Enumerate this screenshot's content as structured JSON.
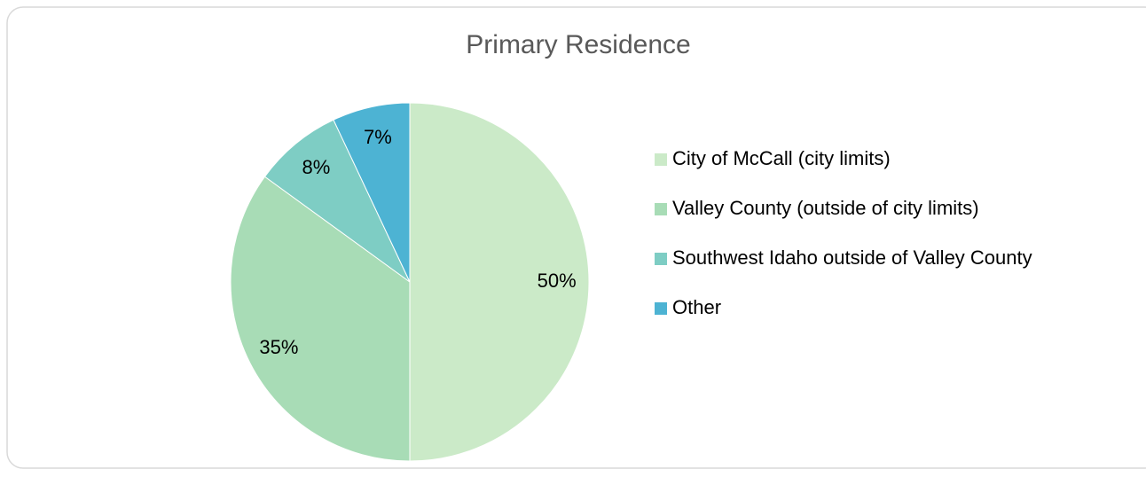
{
  "chart_data": {
    "type": "pie",
    "title": "Primary Residence",
    "categories": [
      "City of McCall (city limits)",
      "Valley County (outside of city limits)",
      "Southwest Idaho outside of Valley County",
      "Other"
    ],
    "values": [
      50,
      35,
      8,
      7
    ],
    "value_labels": [
      "50%",
      "35%",
      "8%",
      "7%"
    ],
    "colors": [
      "#cbeac8",
      "#a8dcb6",
      "#7ecdc4",
      "#4db3d3"
    ],
    "legend": "right"
  }
}
